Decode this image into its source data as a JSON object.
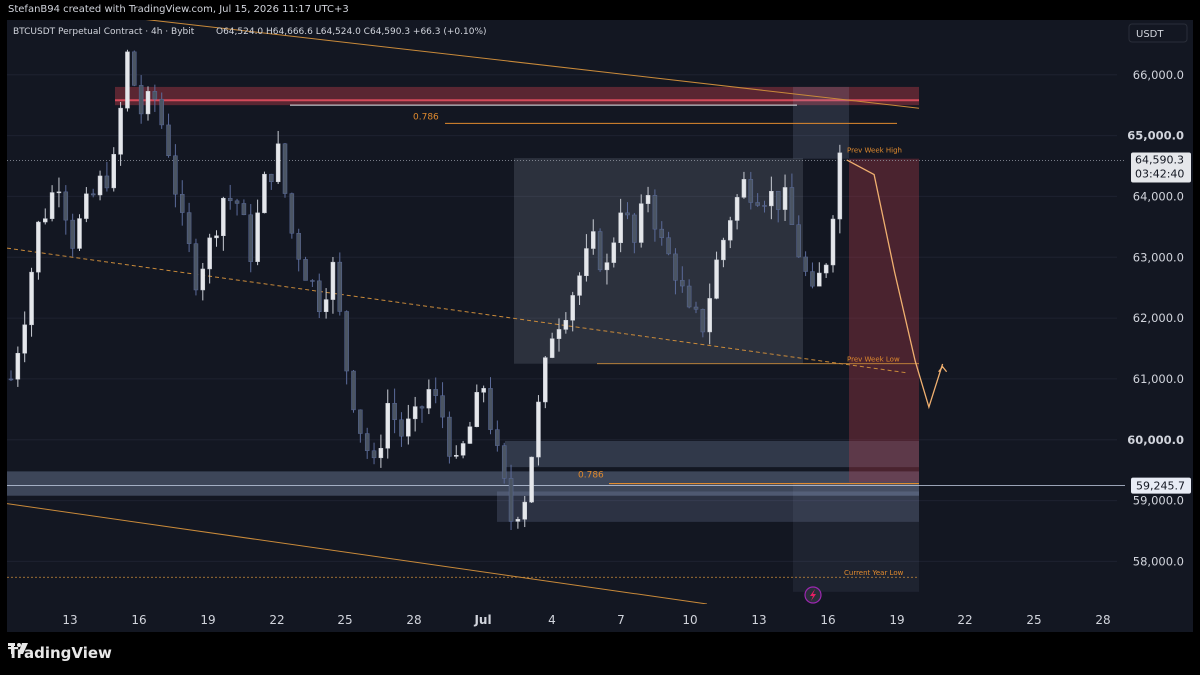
{
  "header": {
    "attribution": "StefanB94 created with TradingView.com, Jul 15, 2026 11:17 UTC+3",
    "symbol": "BTCUSDT Perpetual Contract · 4h · Bybit",
    "ohlc": "O64,524.0  H64,666.6  L64,524.0  C64,590.3  +66.3 (+0.10%)",
    "currency": "USDT"
  },
  "footer": {
    "brand": "TradingView"
  },
  "colors": {
    "background": "#131722",
    "candle_body": "#e5e7eb",
    "candle_down": "#4b5563",
    "resistance_zone": "#b23a48",
    "fib_line": "#e08a2e",
    "trendline": "#c98a3a",
    "projection": "#f0b070"
  },
  "chart_data": {
    "type": "candlestick",
    "timeframe": "4h",
    "x_ticks": [
      "13",
      "16",
      "19",
      "22",
      "25",
      "28",
      "Jul",
      "4",
      "7",
      "10",
      "13",
      "16",
      "19",
      "22",
      "25",
      "28"
    ],
    "y_ticks": [
      "66,000.0",
      "65,000.0",
      "64,000.0",
      "63,000.0",
      "62,000.0",
      "61,000.0",
      "60,000.0",
      "59,000.0",
      "58,000.0"
    ],
    "ylim": [
      57300,
      66900
    ],
    "last_price_label": "64,590.3",
    "countdown": "03:42:40",
    "marker_price_label": "59,245.7",
    "last_price": 64590.3,
    "marker_price": 59245.7,
    "annotations": {
      "fib_upper": "0.786",
      "fib_lower": "0.786",
      "prev_week_high": "Prev Week High",
      "prev_week_low": "Prev Week Low",
      "current_year_low": "Current Year Low"
    },
    "levels": {
      "fib_upper": 65200,
      "fib_lower": 59280,
      "prev_week_high": 64620,
      "prev_week_low": 61250,
      "current_year_low": 57740,
      "resistance_zone": [
        65500,
        65800
      ]
    },
    "price_path": [
      [
        0,
        61000
      ],
      [
        2,
        62100
      ],
      [
        4,
        63500
      ],
      [
        7,
        64300
      ],
      [
        9,
        63300
      ],
      [
        11,
        63800
      ],
      [
        13,
        64200
      ],
      [
        15,
        64500
      ],
      [
        17,
        66300
      ],
      [
        19,
        65400
      ],
      [
        21,
        65600
      ],
      [
        23,
        64800
      ],
      [
        25,
        63500
      ],
      [
        27,
        62700
      ],
      [
        29,
        63200
      ],
      [
        31,
        64000
      ],
      [
        33,
        63900
      ],
      [
        35,
        63100
      ],
      [
        37,
        64200
      ],
      [
        39,
        64700
      ],
      [
        41,
        63400
      ],
      [
        43,
        62800
      ],
      [
        45,
        62300
      ],
      [
        47,
        62800
      ],
      [
        49,
        61200
      ],
      [
        51,
        60200
      ],
      [
        53,
        59500
      ],
      [
        55,
        60600
      ],
      [
        57,
        60100
      ],
      [
        59,
        60300
      ],
      [
        61,
        60800
      ],
      [
        63,
        60400
      ],
      [
        65,
        59500
      ],
      [
        67,
        60200
      ],
      [
        69,
        60900
      ],
      [
        71,
        59700
      ],
      [
        73,
        58700
      ],
      [
        75,
        59100
      ],
      [
        77,
        60500
      ],
      [
        79,
        61800
      ],
      [
        81,
        62200
      ],
      [
        83,
        62700
      ],
      [
        85,
        63200
      ],
      [
        87,
        62800
      ],
      [
        89,
        63900
      ],
      [
        91,
        63200
      ],
      [
        93,
        64100
      ],
      [
        95,
        63200
      ],
      [
        97,
        62800
      ],
      [
        99,
        62000
      ],
      [
        101,
        61900
      ],
      [
        103,
        62900
      ],
      [
        105,
        63700
      ],
      [
        107,
        64200
      ],
      [
        109,
        64100
      ],
      [
        111,
        64000
      ],
      [
        113,
        63900
      ],
      [
        115,
        63100
      ],
      [
        117,
        62300
      ],
      [
        119,
        63000
      ],
      [
        121,
        64700
      ],
      [
        122,
        64600
      ]
    ],
    "projection_path": [
      [
        122,
        64600
      ],
      [
        126,
        64400
      ],
      [
        129,
        62800
      ],
      [
        132,
        61300
      ],
      [
        134,
        60500
      ],
      [
        136,
        61200
      ]
    ]
  }
}
